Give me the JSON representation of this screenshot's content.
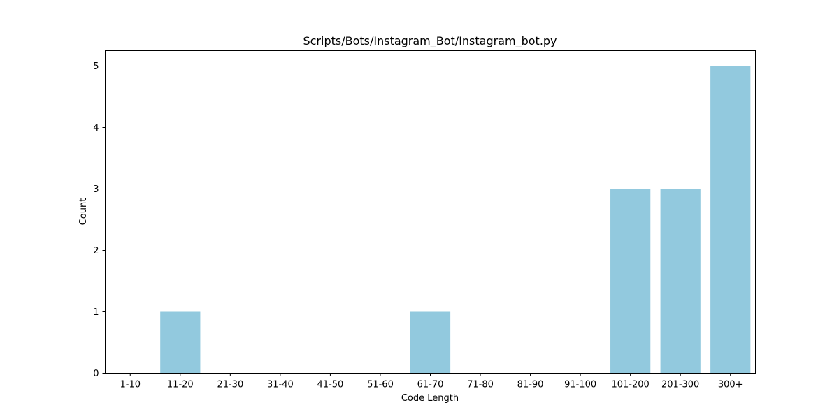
{
  "chart_data": {
    "type": "bar",
    "title": "Scripts/Bots/Instagram_Bot/Instagram_bot.py",
    "xlabel": "Code Length",
    "ylabel": "Count",
    "categories": [
      "1-10",
      "11-20",
      "21-30",
      "31-40",
      "41-50",
      "51-60",
      "61-70",
      "71-80",
      "81-90",
      "91-100",
      "101-200",
      "201-300",
      "300+"
    ],
    "values": [
      0,
      1,
      0,
      0,
      0,
      0,
      1,
      0,
      0,
      0,
      3,
      3,
      5
    ],
    "ylim": [
      0,
      5.25
    ],
    "yticks": [
      0,
      1,
      2,
      3,
      4,
      5
    ],
    "bar_color": "#92c9de",
    "grid": false,
    "legend": "none"
  }
}
